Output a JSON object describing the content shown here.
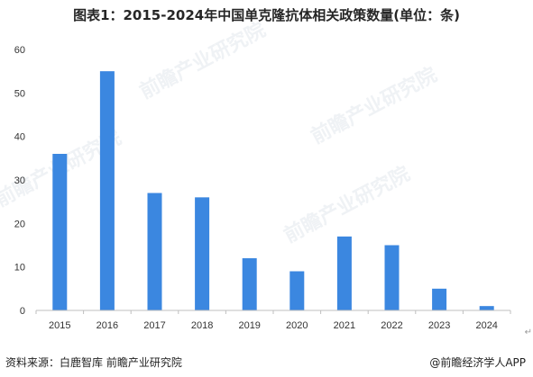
{
  "page": {
    "footer_source": "资料来源：白鹿智库 前瞻产业研究院",
    "footer_brand": "@前瞻经济学人APP",
    "return_mark": "↵",
    "watermark_text": "前瞻产业研究院"
  },
  "colors": {
    "bar": "#3b87e0",
    "axis": "#bfbfbf",
    "tick_text": "#333333"
  },
  "chart_data": {
    "type": "bar",
    "title": "图表1：2015-2024年中国单克隆抗体相关政策数量(单位：条)",
    "categories": [
      "2015",
      "2016",
      "2017",
      "2018",
      "2019",
      "2020",
      "2021",
      "2022",
      "2023",
      "2024"
    ],
    "values": [
      36,
      55,
      27,
      26,
      12,
      9,
      17,
      15,
      5,
      1
    ],
    "ylim": [
      0,
      60
    ],
    "yticks": [
      0,
      10,
      20,
      30,
      40,
      50,
      60
    ],
    "xlabel": "",
    "ylabel": "",
    "grid": false,
    "legend": "none"
  }
}
